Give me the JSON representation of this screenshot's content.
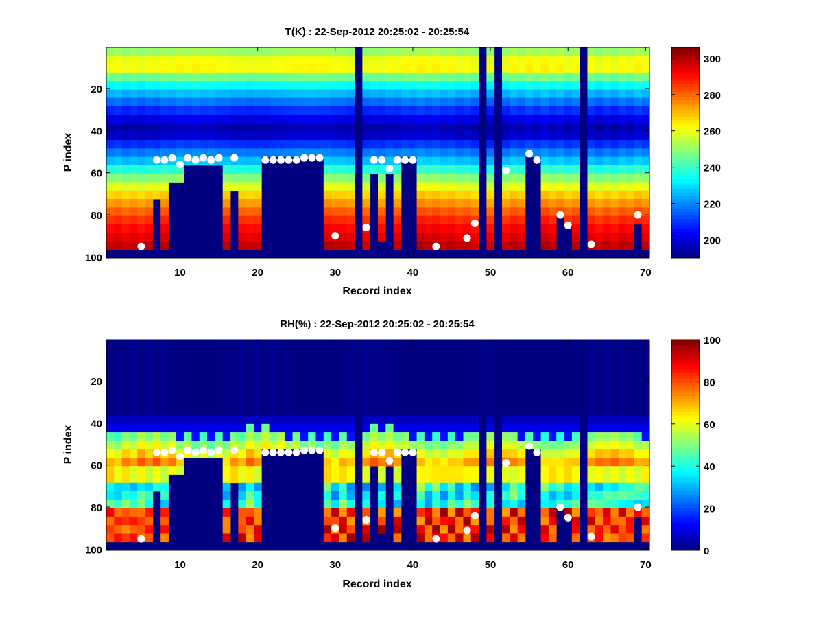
{
  "chart_data": [
    {
      "type": "heatmap",
      "title": "T(K) : 22-Sep-2012 20:25:02 - 20:25:54",
      "xlabel": "Record index",
      "ylabel": "P index",
      "x_range": [
        1,
        70
      ],
      "y_range": [
        1,
        100
      ],
      "y_reversed": true,
      "xticks": [
        "10",
        "20",
        "30",
        "40",
        "50",
        "60",
        "70"
      ],
      "yticks": [
        "20",
        "40",
        "60",
        "80",
        "100"
      ],
      "colorbar": {
        "colormap": "jet",
        "min": 190,
        "max": 306,
        "ticks": [
          "200",
          "220",
          "240",
          "260",
          "280",
          "300"
        ]
      },
      "profile_model": "temperature",
      "surface_pindex_by_record": [
        97,
        97,
        97,
        97,
        97,
        97,
        72,
        97,
        65,
        65,
        56,
        56,
        56,
        56,
        56,
        97,
        70,
        97,
        97,
        97,
        55,
        55,
        55,
        55,
        55,
        55,
        55,
        55,
        97,
        97,
        97,
        97,
        1,
        97,
        60,
        95,
        60,
        97,
        55,
        55,
        97,
        97,
        97,
        97,
        97,
        97,
        97,
        96,
        1,
        97,
        1,
        97,
        97,
        97,
        52,
        55,
        97,
        97,
        80,
        85,
        97,
        1,
        97,
        97,
        97,
        97,
        97,
        97,
        85,
        97
      ],
      "markers": [
        [
          5,
          95
        ],
        [
          7,
          54
        ],
        [
          8,
          54
        ],
        [
          9,
          53
        ],
        [
          10,
          56
        ],
        [
          11,
          53
        ],
        [
          12,
          54
        ],
        [
          13,
          53
        ],
        [
          14,
          54
        ],
        [
          15,
          53
        ],
        [
          17,
          53
        ],
        [
          21,
          54
        ],
        [
          22,
          54
        ],
        [
          23,
          54
        ],
        [
          24,
          54
        ],
        [
          25,
          54
        ],
        [
          26,
          53
        ],
        [
          27,
          53
        ],
        [
          28,
          53
        ],
        [
          30,
          90
        ],
        [
          34,
          86
        ],
        [
          35,
          54
        ],
        [
          36,
          54
        ],
        [
          37,
          58
        ],
        [
          38,
          54
        ],
        [
          39,
          54
        ],
        [
          40,
          54
        ],
        [
          43,
          95
        ],
        [
          47,
          91
        ],
        [
          48,
          84
        ],
        [
          52,
          59
        ],
        [
          55,
          51
        ],
        [
          56,
          54
        ],
        [
          59,
          80
        ],
        [
          60,
          85
        ],
        [
          63,
          94
        ],
        [
          69,
          80
        ]
      ]
    },
    {
      "type": "heatmap",
      "title": "RH(%) : 22-Sep-2012 20:25:02 - 20:25:54",
      "xlabel": "Record index",
      "ylabel": "P index",
      "x_range": [
        1,
        70
      ],
      "y_range": [
        1,
        100
      ],
      "y_reversed": true,
      "xticks": [
        "10",
        "20",
        "30",
        "40",
        "50",
        "60",
        "70"
      ],
      "yticks": [
        "20",
        "40",
        "60",
        "80",
        "100"
      ],
      "colorbar": {
        "colormap": "jet",
        "min": 0,
        "max": 100,
        "ticks": [
          "0",
          "20",
          "40",
          "60",
          "80",
          "100"
        ]
      },
      "profile_model": "humidity",
      "surface_pindex_by_record": [
        97,
        97,
        97,
        97,
        97,
        97,
        72,
        97,
        65,
        65,
        56,
        56,
        56,
        56,
        56,
        97,
        70,
        97,
        97,
        97,
        55,
        55,
        55,
        55,
        55,
        55,
        55,
        55,
        97,
        97,
        97,
        97,
        1,
        97,
        60,
        95,
        60,
        97,
        55,
        55,
        97,
        97,
        97,
        97,
        97,
        97,
        97,
        96,
        1,
        97,
        1,
        97,
        97,
        97,
        52,
        55,
        97,
        97,
        80,
        85,
        97,
        1,
        97,
        97,
        97,
        97,
        97,
        97,
        85,
        97
      ],
      "markers": [
        [
          5,
          95
        ],
        [
          7,
          54
        ],
        [
          8,
          54
        ],
        [
          9,
          53
        ],
        [
          10,
          56
        ],
        [
          11,
          53
        ],
        [
          12,
          54
        ],
        [
          13,
          53
        ],
        [
          14,
          54
        ],
        [
          15,
          53
        ],
        [
          17,
          53
        ],
        [
          21,
          54
        ],
        [
          22,
          54
        ],
        [
          23,
          54
        ],
        [
          24,
          54
        ],
        [
          25,
          54
        ],
        [
          26,
          53
        ],
        [
          27,
          53
        ],
        [
          28,
          53
        ],
        [
          30,
          90
        ],
        [
          34,
          86
        ],
        [
          35,
          54
        ],
        [
          36,
          54
        ],
        [
          37,
          58
        ],
        [
          38,
          54
        ],
        [
          39,
          54
        ],
        [
          40,
          54
        ],
        [
          43,
          95
        ],
        [
          47,
          91
        ],
        [
          48,
          84
        ],
        [
          52,
          59
        ],
        [
          55,
          51
        ],
        [
          56,
          54
        ],
        [
          59,
          80
        ],
        [
          60,
          85
        ],
        [
          63,
          94
        ],
        [
          69,
          80
        ]
      ]
    }
  ]
}
